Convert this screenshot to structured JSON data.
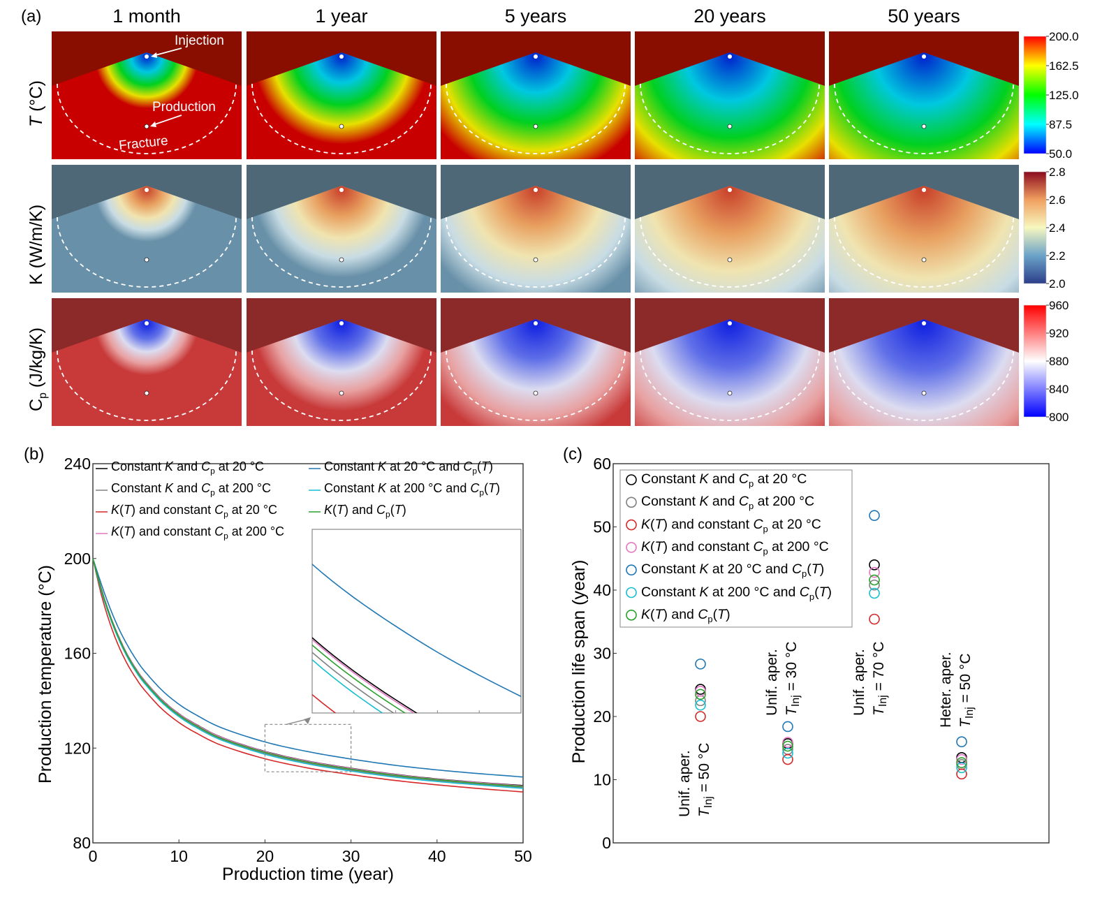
{
  "panel_a": {
    "label": "(a)",
    "columns": [
      "1 month",
      "1 year",
      "5 years",
      "20 years",
      "50 years"
    ],
    "rows": [
      {
        "label_main": "T",
        "label_rest": " (°C)",
        "kind": "T",
        "colorbar_ticks": [
          "200.0",
          "162.5",
          "125.0",
          "87.5",
          "50.0"
        ],
        "range": [
          50,
          200
        ]
      },
      {
        "label_main": "K (W/m/K)",
        "label_rest": "",
        "kind": "K",
        "colorbar_ticks": [
          "2.8",
          "2.6",
          "2.4",
          "2.2",
          "2.0"
        ],
        "range": [
          2.0,
          2.8
        ]
      },
      {
        "label_main": "C",
        "label_sub": "p",
        "label_rest": " (J/kg/K)",
        "kind": "Cp",
        "colorbar_ticks": [
          "960",
          "920",
          "880",
          "840",
          "800"
        ],
        "range": [
          800,
          960
        ]
      }
    ],
    "annotations": {
      "injection": "Injection",
      "production": "Production",
      "fracture": "Fracture"
    },
    "spread": [
      0.18,
      0.45,
      0.7,
      0.9,
      1.0
    ],
    "colors": {
      "T": [
        "#0000ff",
        "#00ffff",
        "#00ff00",
        "#ffff00",
        "#ff0000"
      ],
      "K": [
        "#2c3e8a",
        "#6ba3c8",
        "#f7f7c0",
        "#f0a060",
        "#8b0a1e"
      ],
      "Cp": [
        "#0000ff",
        "#ffffff",
        "#ff0000"
      ]
    }
  },
  "panel_b": {
    "label": "(b)",
    "inset_ticks_x": 5
  },
  "panel_c": {
    "label": "(c)"
  },
  "chart_data": [
    {
      "type": "line",
      "title": "",
      "xlabel": "Production time (year)",
      "ylabel": "Production temperature (°C)",
      "xlim": [
        0,
        50
      ],
      "ylim": [
        80,
        240
      ],
      "xticks": [
        "0",
        "10",
        "20",
        "30",
        "40",
        "50"
      ],
      "yticks": [
        "80",
        "120",
        "160",
        "200",
        "240"
      ],
      "legend": "top",
      "inset": {
        "zoom_region_x": [
          20,
          30
        ],
        "zoom_region_y": [
          110,
          130
        ]
      },
      "x": [
        0,
        1,
        2,
        3,
        4,
        5,
        6,
        8,
        10,
        12,
        15,
        20,
        25,
        30,
        35,
        40,
        45,
        50
      ],
      "series": [
        {
          "name_html": "Constant <i>K</i> and <i>C</i><sub>p</sub> at 20 °C",
          "color": "#000000",
          "values": [
            200,
            187,
            176,
            167,
            159.5,
            153.5,
            148.5,
            140.5,
            134.5,
            130,
            124.5,
            118.6,
            114.5,
            111.5,
            109,
            107,
            105.5,
            104.2
          ]
        },
        {
          "name_html": "Constant <i>K</i> and <i>C</i><sub>p</sub> at 200 °C",
          "color": "#808080",
          "values": [
            200,
            186.4,
            175.3,
            166.2,
            158.7,
            152.6,
            147.6,
            139.6,
            133.6,
            129,
            123.6,
            117.8,
            113.7,
            110.7,
            108.2,
            106.3,
            104.8,
            103.4
          ]
        },
        {
          "name_html": "<i>K</i>(<i>T</i>) and constant <i>C</i><sub>p</sub> at 20 °C",
          "color": "#d62728",
          "values": [
            200,
            184.5,
            172.5,
            163,
            155.5,
            149.5,
            144.5,
            136.6,
            130.8,
            126.4,
            121.1,
            115.5,
            111.6,
            108.8,
            106.4,
            104.5,
            102.9,
            101.5
          ]
        },
        {
          "name_html": "<i>K</i>(<i>T</i>) and constant <i>C</i><sub>p</sub> at 200 °C",
          "color": "#e377c2",
          "values": [
            200,
            186.9,
            175.9,
            166.9,
            159.4,
            153.4,
            148.4,
            140.4,
            134.4,
            129.9,
            124.4,
            118.5,
            114.4,
            111.4,
            108.9,
            106.9,
            105.4,
            104.0
          ]
        },
        {
          "name_html": "Constant <i>K</i> at 20 °C and <i>C</i><sub>p</sub>(<i>T</i>)",
          "color": "#1f77b4",
          "values": [
            200,
            189,
            179,
            170.5,
            163.5,
            157.5,
            152.5,
            144.5,
            138.5,
            134,
            128.5,
            122.6,
            118.5,
            115.4,
            112.8,
            110.8,
            109.2,
            107.8
          ]
        },
        {
          "name_html": "Constant <i>K</i> at 200 °C and <i>C</i><sub>p</sub>(<i>T</i>)",
          "color": "#17becf",
          "values": [
            200,
            186.1,
            175,
            165.9,
            158.4,
            152.3,
            147.3,
            139.3,
            133.3,
            128.7,
            123.3,
            117.4,
            113.3,
            110.3,
            107.8,
            105.9,
            104.4,
            103.0
          ]
        },
        {
          "name_html": "<i>K</i>(<i>T</i>) and <i>C</i><sub>p</sub>(<i>T</i>)",
          "color": "#2ca02c",
          "values": [
            200,
            186.7,
            175.7,
            166.6,
            159.1,
            153.0,
            148.0,
            140.0,
            134.0,
            129.5,
            124.0,
            118.2,
            114.1,
            111.1,
            108.6,
            106.7,
            105.1,
            103.8
          ]
        }
      ]
    },
    {
      "type": "scatter",
      "title": "",
      "xlabel": "",
      "ylabel": "Production life span (year)",
      "ylim": [
        0,
        60
      ],
      "yticks": [
        "0",
        "10",
        "20",
        "30",
        "40",
        "50",
        "60"
      ],
      "legend": "top-left",
      "categories": [
        {
          "line1": "Unif. aper.",
          "tvar": "T",
          "tsub": "Inj",
          "teq": " = 50 °C",
          "label_pos": "below"
        },
        {
          "line1": "Unif. aper.",
          "tvar": "T",
          "tsub": "Inj",
          "teq": " = 30 °C",
          "label_pos": "above"
        },
        {
          "line1": "Unif. aper.",
          "tvar": "T",
          "tsub": "Inj",
          "teq": " = 70 °C",
          "label_pos": "below"
        },
        {
          "line1": "Heter. aper.",
          "tvar": "T",
          "tsub": "Inj",
          "teq": " = 50 °C",
          "label_pos": "above"
        }
      ],
      "series": [
        {
          "name_html": "Constant <i>K</i> and <i>C</i><sub>p</sub> at 20 °C",
          "color": "#000000",
          "values": [
            24.3,
            15.7,
            44.0,
            13.5
          ]
        },
        {
          "name_html": "Constant <i>K</i> and <i>C</i><sub>p</sub> at 200 °C",
          "color": "#808080",
          "values": [
            22.5,
            14.8,
            40.8,
            12.4
          ]
        },
        {
          "name_html": "<i>K</i>(<i>T</i>) and constant <i>C</i><sub>p</sub> at 20 °C",
          "color": "#d62728",
          "values": [
            20.0,
            13.2,
            35.4,
            10.9
          ]
        },
        {
          "name_html": "<i>K</i>(<i>T</i>) and constant <i>C</i><sub>p</sub> at 200 °C",
          "color": "#e377c2",
          "values": [
            24.0,
            15.9,
            42.8,
            13.2
          ]
        },
        {
          "name_html": "Constant <i>K</i> at 20 °C and <i>C</i><sub>p</sub>(<i>T</i>)",
          "color": "#1f77b4",
          "values": [
            28.3,
            18.4,
            51.8,
            16.0
          ]
        },
        {
          "name_html": "Constant <i>K</i> at 200 °C and <i>C</i><sub>p</sub>(<i>T</i>)",
          "color": "#17becf",
          "values": [
            21.8,
            14.2,
            39.5,
            11.9
          ]
        },
        {
          "name_html": "<i>K</i>(<i>T</i>) and <i>C</i><sub>p</sub>(<i>T</i>)",
          "color": "#2ca02c",
          "values": [
            23.5,
            15.3,
            41.6,
            12.7
          ]
        }
      ]
    }
  ]
}
